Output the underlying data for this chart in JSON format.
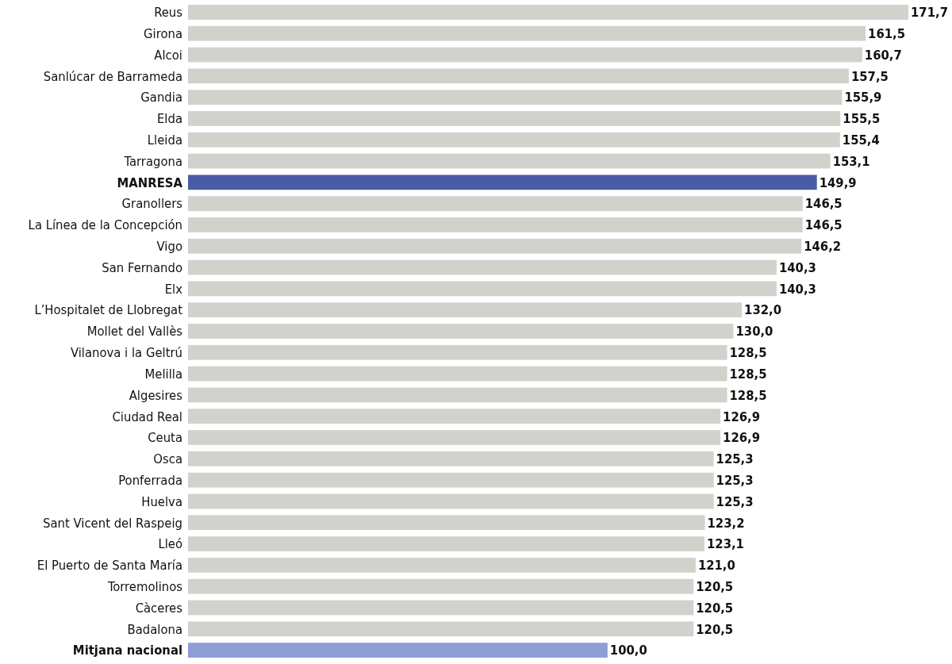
{
  "chart_data": {
    "type": "bar",
    "orientation": "horizontal",
    "categories": [
      "Reus",
      "Girona",
      "Alcoi",
      "Sanlúcar de Barrameda",
      "Gandia",
      "Elda",
      "Lleida",
      "Tarragona",
      "MANRESA",
      "Granollers",
      "La Línea de la Concepción",
      "Vigo",
      "San Fernando",
      "Elx",
      "L’Hospitalet de Llobregat",
      "Mollet del Vallès",
      "Vilanova i la Geltrú",
      "Melilla",
      "Algesires",
      "Ciudad Real",
      "Ceuta",
      "Osca",
      "Ponferrada",
      "Huelva",
      "Sant Vicent del Raspeig",
      "Lleó",
      "El Puerto de Santa María",
      "Torremolinos",
      "Càceres",
      "Badalona",
      "Mitjana nacional"
    ],
    "values": [
      171.7,
      161.5,
      160.7,
      157.5,
      155.9,
      155.5,
      155.4,
      153.1,
      149.9,
      146.5,
      146.5,
      146.2,
      140.3,
      140.3,
      132.0,
      130.0,
      128.5,
      128.5,
      128.5,
      126.9,
      126.9,
      125.3,
      125.3,
      125.3,
      123.2,
      123.1,
      121.0,
      120.5,
      120.5,
      120.5,
      100.0
    ],
    "value_labels": [
      "171,7",
      "161,5",
      "160,7",
      "157,5",
      "155,9",
      "155,5",
      "155,4",
      "153,1",
      "149,9",
      "146,5",
      "146,5",
      "146,2",
      "140,3",
      "140,3",
      "132,0",
      "130,0",
      "128,5",
      "128,5",
      "128,5",
      "126,9",
      "126,9",
      "125,3",
      "125,3",
      "125,3",
      "123,2",
      "123,1",
      "121,0",
      "120,5",
      "120,5",
      "120,5",
      "100,0"
    ],
    "colors": [
      "#d3d1cc",
      "#d3d1cc",
      "#d3d1cc",
      "#d3d1cc",
      "#d3d1cc",
      "#d3d1cc",
      "#d3d1cc",
      "#d3d1cc",
      "#4a5ca8",
      "#d3d1cc",
      "#d3d1cc",
      "#d3d1cc",
      "#d3d1cc",
      "#d3d1cc",
      "#d3d1cc",
      "#d3d1cc",
      "#d3d1cc",
      "#d3d1cc",
      "#d3d1cc",
      "#d3d1cc",
      "#d3d1cc",
      "#d3d1cc",
      "#d3d1cc",
      "#d3d1cc",
      "#d3d1cc",
      "#d3d1cc",
      "#d3d1cc",
      "#d3d1cc",
      "#d3d1cc",
      "#d3d1cc",
      "#8e9dd6"
    ]
  }
}
